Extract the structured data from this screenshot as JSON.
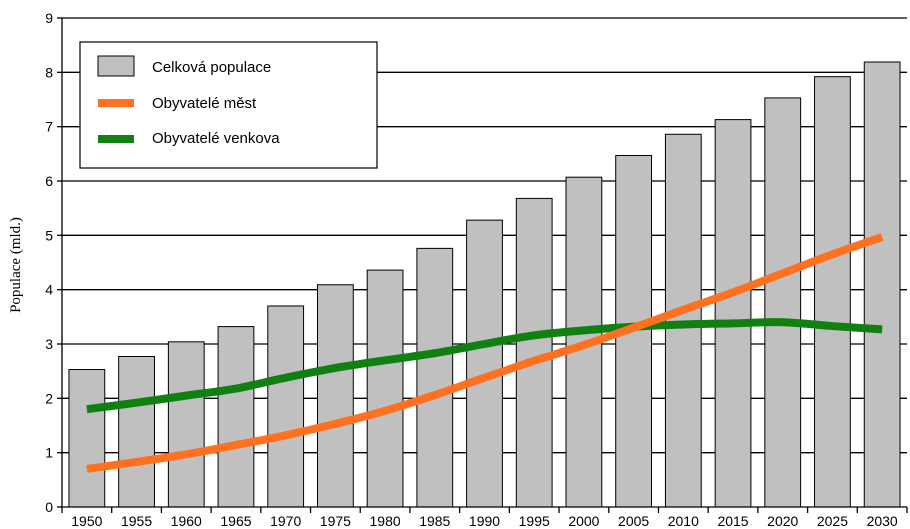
{
  "chart_data": {
    "type": "bar",
    "title": "",
    "xlabel": "",
    "ylabel": "Populace (mld.)",
    "ylim": [
      0,
      9
    ],
    "yticks": [
      0,
      1,
      2,
      3,
      4,
      5,
      6,
      7,
      8,
      9
    ],
    "grid": true,
    "legend_position": "top-left",
    "categories": [
      "1950",
      "1955",
      "1960",
      "1965",
      "1970",
      "1975",
      "1980",
      "1985",
      "1990",
      "1995",
      "2000",
      "2005",
      "2010",
      "2015",
      "2020",
      "2025",
      "2030"
    ],
    "series": [
      {
        "name": "Celková populace",
        "type": "bar",
        "color": "#c0c0c0",
        "values": [
          2.53,
          2.77,
          3.04,
          3.32,
          3.7,
          4.09,
          4.36,
          4.76,
          5.28,
          5.68,
          6.07,
          6.47,
          6.86,
          7.13,
          7.53,
          7.92,
          8.19
        ]
      },
      {
        "name": "Obyvatelé měst",
        "type": "line",
        "color": "#ff7020",
        "values": [
          0.7,
          0.83,
          0.97,
          1.14,
          1.32,
          1.53,
          1.77,
          2.06,
          2.38,
          2.69,
          2.98,
          3.3,
          3.63,
          3.95,
          4.3,
          4.65,
          4.97
        ]
      },
      {
        "name": "Obyvatelé venkova",
        "type": "line",
        "color": "#108010",
        "values": [
          1.8,
          1.92,
          2.05,
          2.18,
          2.38,
          2.56,
          2.7,
          2.83,
          3.0,
          3.16,
          3.25,
          3.32,
          3.36,
          3.38,
          3.4,
          3.33,
          3.27
        ]
      }
    ]
  }
}
